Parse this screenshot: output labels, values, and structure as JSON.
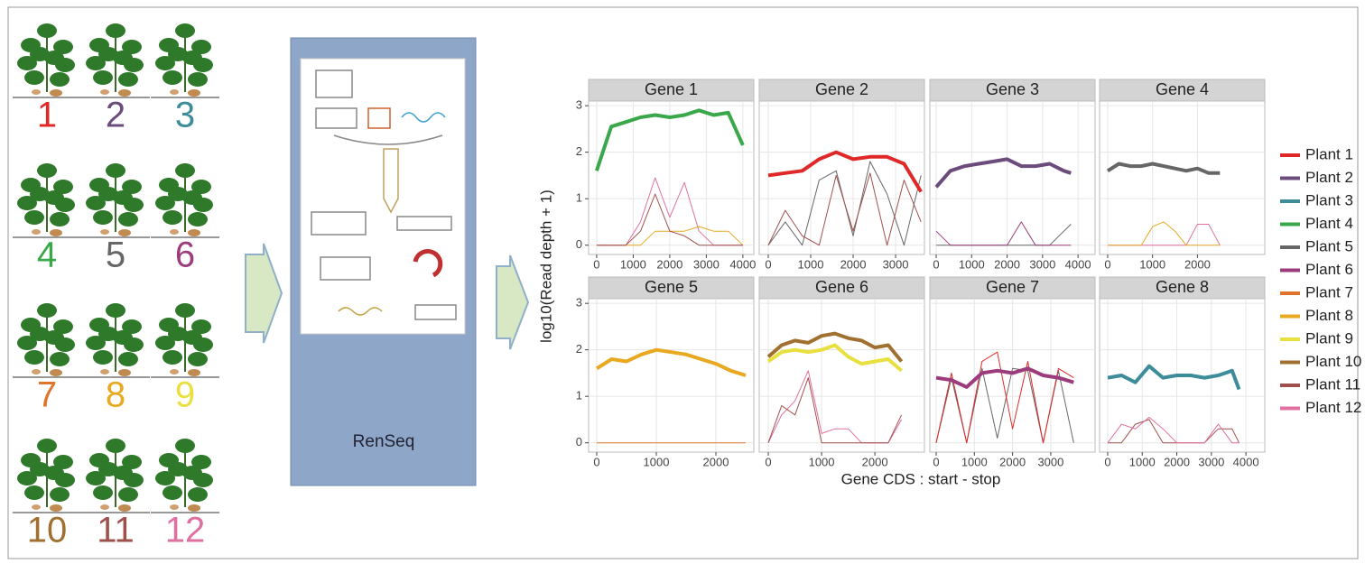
{
  "plants": [
    {
      "label": "1",
      "color": "#e02828"
    },
    {
      "label": "2",
      "color": "#6b4c7c"
    },
    {
      "label": "3",
      "color": "#3c8c9a"
    },
    {
      "label": "4",
      "color": "#3aa84a"
    },
    {
      "label": "5",
      "color": "#666666"
    },
    {
      "label": "6",
      "color": "#9c3c7c"
    },
    {
      "label": "7",
      "color": "#e0742c"
    },
    {
      "label": "8",
      "color": "#e8a820"
    },
    {
      "label": "9",
      "color": "#e8e040"
    },
    {
      "label": "10",
      "color": "#a07030"
    },
    {
      "label": "11",
      "color": "#a0504c"
    },
    {
      "label": "12",
      "color": "#e070a0"
    }
  ],
  "renseq": "RenSeq",
  "ylabel": "log10(Read depth + 1)",
  "xlabel": "Gene CDS : start - stop",
  "legend": [
    {
      "name": "Plant 1",
      "color": "#e02828"
    },
    {
      "name": "Plant 2",
      "color": "#6b4c7c"
    },
    {
      "name": "Plant 3",
      "color": "#3c8c9a"
    },
    {
      "name": "Plant 4",
      "color": "#3aa84a"
    },
    {
      "name": "Plant 5",
      "color": "#666666"
    },
    {
      "name": "Plant 6",
      "color": "#9c3c7c"
    },
    {
      "name": "Plant 7",
      "color": "#e0742c"
    },
    {
      "name": "Plant 8",
      "color": "#e8a820"
    },
    {
      "name": "Plant 9",
      "color": "#e8e040"
    },
    {
      "name": "Plant 10",
      "color": "#a07030"
    },
    {
      "name": "Plant 11",
      "color": "#a0504c"
    },
    {
      "name": "Plant 12",
      "color": "#e070a0"
    }
  ],
  "chart_data": [
    {
      "type": "line",
      "title": "Gene 1",
      "x": [
        0,
        400,
        800,
        1200,
        1600,
        2000,
        2400,
        2800,
        3200,
        3600,
        4000
      ],
      "series": [
        {
          "name": "Plant 4",
          "linewidth": 4,
          "values": [
            1.6,
            2.55,
            2.65,
            2.75,
            2.8,
            2.75,
            2.8,
            2.9,
            2.8,
            2.85,
            2.15
          ]
        },
        {
          "name": "Plant 11",
          "linewidth": 1,
          "values": [
            0,
            0,
            0,
            0.3,
            1.1,
            0.3,
            0.2,
            0,
            0,
            0,
            0
          ]
        },
        {
          "name": "Plant 12",
          "linewidth": 1,
          "values": [
            0,
            0,
            0,
            0.5,
            1.45,
            0.6,
            1.35,
            0.3,
            0,
            0,
            0
          ]
        },
        {
          "name": "Plant 8",
          "linewidth": 1,
          "values": [
            0,
            0,
            0,
            0,
            0.3,
            0.3,
            0.3,
            0.4,
            0.3,
            0.3,
            0
          ]
        }
      ],
      "xlim": [
        -220,
        4300
      ],
      "xticks": [
        0,
        1000,
        2000,
        3000,
        4000
      ],
      "ylim": [
        -0.2,
        3.1
      ],
      "yticks": [
        0,
        1,
        2,
        3
      ],
      "grid": true
    },
    {
      "type": "line",
      "title": "Gene 2",
      "x": [
        0,
        400,
        800,
        1200,
        1600,
        2000,
        2400,
        2800,
        3200,
        3600
      ],
      "series": [
        {
          "name": "Plant 1",
          "linewidth": 4,
          "values": [
            1.5,
            1.55,
            1.6,
            1.85,
            2.0,
            1.85,
            1.9,
            1.9,
            1.75,
            1.15
          ]
        },
        {
          "name": "Plant 11",
          "linewidth": 1,
          "values": [
            0,
            0.75,
            0.2,
            0,
            1.5,
            0.3,
            1.55,
            0,
            1.4,
            0.5
          ]
        },
        {
          "name": "Plant 5",
          "linewidth": 1,
          "values": [
            0,
            0.5,
            0,
            1.4,
            1.6,
            0.2,
            1.8,
            1.1,
            0,
            1.5
          ]
        }
      ],
      "xlim": [
        -213,
        3680
      ],
      "xticks": [
        0,
        1000,
        2000,
        3000
      ],
      "ylim": [
        -0.2,
        3.1
      ],
      "yticks": [
        0,
        1,
        2,
        3
      ],
      "grid": true
    },
    {
      "type": "line",
      "title": "Gene 3",
      "x": [
        0,
        400,
        800,
        1200,
        1600,
        2000,
        2400,
        2800,
        3200,
        3600,
        3800
      ],
      "series": [
        {
          "name": "Plant 2",
          "linewidth": 4,
          "values": [
            1.25,
            1.6,
            1.7,
            1.75,
            1.8,
            1.85,
            1.7,
            1.7,
            1.75,
            1.6,
            1.55
          ]
        },
        {
          "name": "Plant 6",
          "linewidth": 1,
          "values": [
            0.3,
            0,
            0,
            0,
            0,
            0,
            0.5,
            0,
            0,
            0,
            0
          ]
        },
        {
          "name": "Plant 5",
          "linewidth": 1,
          "values": [
            0,
            0,
            0,
            0,
            0,
            0,
            0,
            0,
            0,
            0.3,
            0.45
          ]
        }
      ],
      "xlim": [
        -178,
        4480
      ],
      "xticks": [
        0,
        1000,
        2000,
        3000,
        4000
      ],
      "ylim": [
        -0.2,
        3.1
      ],
      "yticks": [
        0,
        1,
        2,
        3
      ],
      "grid": true
    },
    {
      "type": "line",
      "title": "Gene 4",
      "x": [
        0,
        250,
        500,
        750,
        1000,
        1250,
        1500,
        1750,
        2000,
        2250,
        2500
      ],
      "series": [
        {
          "name": "Plant 5",
          "linewidth": 4,
          "values": [
            1.6,
            1.75,
            1.7,
            1.7,
            1.75,
            1.7,
            1.65,
            1.6,
            1.65,
            1.55,
            1.55
          ]
        },
        {
          "name": "Plant 8",
          "linewidth": 1,
          "values": [
            0,
            0,
            0,
            0,
            0.4,
            0.5,
            0.3,
            0,
            0,
            0,
            0
          ]
        },
        {
          "name": "Plant 12",
          "linewidth": 1,
          "values": [
            0,
            0,
            0,
            0,
            0,
            0,
            0,
            0,
            0.45,
            0.45,
            0
          ]
        }
      ],
      "xlim": [
        -180,
        3500
      ],
      "xticks": [
        0,
        1000,
        2000
      ],
      "ylim": [
        -0.2,
        3.1
      ],
      "yticks": [
        0,
        1,
        2,
        3
      ],
      "grid": true
    },
    {
      "type": "line",
      "title": "Gene 5",
      "x": [
        0,
        250,
        500,
        750,
        1000,
        1250,
        1500,
        1750,
        2000,
        2250,
        2500
      ],
      "series": [
        {
          "name": "Plant 8",
          "linewidth": 4,
          "values": [
            1.6,
            1.8,
            1.75,
            1.9,
            2.0,
            1.95,
            1.9,
            1.8,
            1.7,
            1.55,
            1.45
          ]
        },
        {
          "name": "Plant 7",
          "linewidth": 1,
          "values": [
            0,
            0,
            0,
            0,
            0,
            0,
            0,
            0,
            0,
            0,
            0
          ]
        }
      ],
      "xlim": [
        -136,
        2636
      ],
      "xticks": [
        0,
        1000,
        2000
      ],
      "ylim": [
        -0.2,
        3.1
      ],
      "yticks": [
        0,
        1,
        2,
        3
      ],
      "grid": true
    },
    {
      "type": "line",
      "title": "Gene 6",
      "x": [
        0,
        250,
        500,
        750,
        1000,
        1250,
        1500,
        1750,
        2000,
        2250,
        2500
      ],
      "series": [
        {
          "name": "Plant 10",
          "linewidth": 4,
          "values": [
            1.85,
            2.1,
            2.2,
            2.15,
            2.3,
            2.35,
            2.25,
            2.2,
            2.05,
            2.1,
            1.75
          ]
        },
        {
          "name": "Plant 9",
          "linewidth": 4,
          "values": [
            1.75,
            1.95,
            2.0,
            1.95,
            2.0,
            2.1,
            1.85,
            1.7,
            1.75,
            1.8,
            1.55
          ]
        },
        {
          "name": "Plant 11",
          "linewidth": 1,
          "values": [
            0,
            0.8,
            0.6,
            1.4,
            0,
            0,
            0,
            0,
            0,
            0,
            0.6
          ]
        },
        {
          "name": "Plant 12",
          "linewidth": 1,
          "values": [
            0,
            0.6,
            0.9,
            1.55,
            0.2,
            0.3,
            0.3,
            0,
            0,
            0,
            0.5
          ]
        }
      ],
      "xlim": [
        -170,
        2930
      ],
      "xticks": [
        0,
        1000,
        2000
      ],
      "ylim": [
        -0.2,
        3.1
      ],
      "yticks": [
        0,
        1,
        2,
        3
      ],
      "grid": true
    },
    {
      "type": "line",
      "title": "Gene 7",
      "x": [
        0,
        400,
        800,
        1200,
        1600,
        2000,
        2400,
        2800,
        3200,
        3600
      ],
      "series": [
        {
          "name": "Plant 6",
          "linewidth": 4,
          "values": [
            1.4,
            1.35,
            1.2,
            1.5,
            1.55,
            1.5,
            1.6,
            1.45,
            1.4,
            1.3
          ]
        },
        {
          "name": "Plant 1",
          "linewidth": 1,
          "values": [
            0,
            1.5,
            0,
            1.75,
            1.95,
            0.3,
            1.75,
            0,
            1.6,
            1.4
          ]
        },
        {
          "name": "Plant 5",
          "linewidth": 1,
          "values": [
            0,
            1.4,
            0,
            1.6,
            0.1,
            1.6,
            1.55,
            0,
            1.55,
            0
          ]
        }
      ],
      "xlim": [
        -165,
        4160
      ],
      "xticks": [
        0,
        1000,
        2000,
        3000
      ],
      "ylim": [
        -0.2,
        3.1
      ],
      "yticks": [
        0,
        1,
        2,
        3
      ],
      "grid": true
    },
    {
      "type": "line",
      "title": "Gene 8",
      "x": [
        0,
        400,
        800,
        1200,
        1600,
        2000,
        2400,
        2800,
        3200,
        3600,
        3800
      ],
      "series": [
        {
          "name": "Plant 3",
          "linewidth": 4,
          "values": [
            1.4,
            1.45,
            1.3,
            1.65,
            1.4,
            1.45,
            1.45,
            1.4,
            1.45,
            1.55,
            1.15
          ]
        },
        {
          "name": "Plant 12",
          "linewidth": 1,
          "values": [
            0,
            0.4,
            0.3,
            0.55,
            0.3,
            0,
            0,
            0,
            0.4,
            0,
            0
          ]
        },
        {
          "name": "Plant 11",
          "linewidth": 1,
          "values": [
            0,
            0,
            0.4,
            0.5,
            0,
            0,
            0,
            0,
            0.3,
            0.3,
            0
          ]
        }
      ],
      "xlim": [
        -234,
        4545
      ],
      "xticks": [
        0,
        1000,
        2000,
        3000,
        4000
      ],
      "ylim": [
        -0.2,
        3.1
      ],
      "yticks": [
        0,
        1,
        2,
        3
      ],
      "grid": true
    }
  ]
}
